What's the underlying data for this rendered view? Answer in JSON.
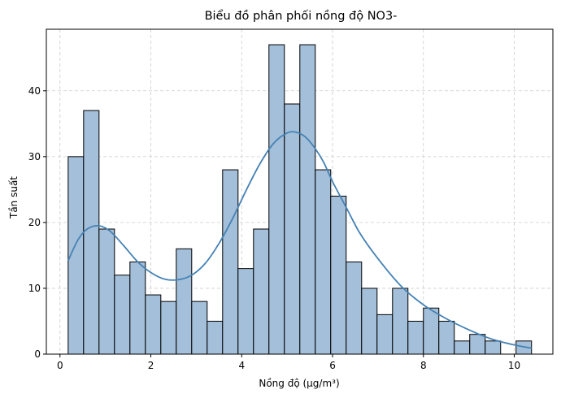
{
  "chart_data": {
    "type": "bar",
    "subtype": "histogram",
    "title": "Biểu đồ phân phối nồng độ NO3-",
    "xlabel": "Nồng độ (µg/m³)",
    "ylabel": "Tần suất",
    "xlim": [
      -0.3,
      10.85
    ],
    "ylim": [
      0,
      49.35
    ],
    "x_ticks": [
      0,
      2,
      4,
      6,
      8,
      10
    ],
    "y_ticks": [
      0,
      10,
      20,
      30,
      40
    ],
    "grid": true,
    "bar_color": "#a3bfd9",
    "edge_color": "#000000",
    "kde_color": "#4682b4",
    "bins": [
      {
        "x0": 0.18,
        "x1": 0.52,
        "count": 30
      },
      {
        "x0": 0.52,
        "x1": 0.86,
        "count": 37
      },
      {
        "x0": 0.86,
        "x1": 1.2,
        "count": 19
      },
      {
        "x0": 1.2,
        "x1": 1.54,
        "count": 12
      },
      {
        "x0": 1.54,
        "x1": 1.88,
        "count": 14
      },
      {
        "x0": 1.88,
        "x1": 2.22,
        "count": 9
      },
      {
        "x0": 2.22,
        "x1": 2.56,
        "count": 8
      },
      {
        "x0": 2.56,
        "x1": 2.9,
        "count": 16
      },
      {
        "x0": 2.9,
        "x1": 3.24,
        "count": 8
      },
      {
        "x0": 3.24,
        "x1": 3.58,
        "count": 5
      },
      {
        "x0": 3.58,
        "x1": 3.92,
        "count": 28
      },
      {
        "x0": 3.92,
        "x1": 4.26,
        "count": 13
      },
      {
        "x0": 4.26,
        "x1": 4.6,
        "count": 19
      },
      {
        "x0": 4.6,
        "x1": 4.94,
        "count": 47
      },
      {
        "x0": 4.94,
        "x1": 5.28,
        "count": 38
      },
      {
        "x0": 5.28,
        "x1": 5.62,
        "count": 47
      },
      {
        "x0": 5.62,
        "x1": 5.96,
        "count": 28
      },
      {
        "x0": 5.96,
        "x1": 6.3,
        "count": 24
      },
      {
        "x0": 6.3,
        "x1": 6.64,
        "count": 14
      },
      {
        "x0": 6.64,
        "x1": 6.98,
        "count": 10
      },
      {
        "x0": 6.98,
        "x1": 7.32,
        "count": 6
      },
      {
        "x0": 7.32,
        "x1": 7.66,
        "count": 10
      },
      {
        "x0": 7.66,
        "x1": 8.0,
        "count": 5
      },
      {
        "x0": 8.0,
        "x1": 8.34,
        "count": 7
      },
      {
        "x0": 8.34,
        "x1": 8.68,
        "count": 5
      },
      {
        "x0": 8.68,
        "x1": 9.02,
        "count": 2
      },
      {
        "x0": 9.02,
        "x1": 9.36,
        "count": 3
      },
      {
        "x0": 9.36,
        "x1": 9.7,
        "count": 2
      },
      {
        "x0": 9.7,
        "x1": 10.04,
        "count": 0
      },
      {
        "x0": 10.04,
        "x1": 10.38,
        "count": 2
      }
    ],
    "kde": {
      "x": [
        0.18,
        0.4,
        0.6,
        0.85,
        1.1,
        1.4,
        1.7,
        2.0,
        2.3,
        2.6,
        2.9,
        3.2,
        3.5,
        3.8,
        4.1,
        4.4,
        4.7,
        5.0,
        5.2,
        5.4,
        5.6,
        5.8,
        6.0,
        6.3,
        6.6,
        7.0,
        7.5,
        8.0,
        8.5,
        9.0,
        9.5,
        10.0,
        10.38
      ],
      "y": [
        14.2,
        17.4,
        19.0,
        19.5,
        18.7,
        16.5,
        14.1,
        12.4,
        11.4,
        11.3,
        12.0,
        13.8,
        16.8,
        20.6,
        24.9,
        28.9,
        32.0,
        33.6,
        33.7,
        33.0,
        31.4,
        29.2,
        26.2,
        22.3,
        18.4,
        14.5,
        10.4,
        7.5,
        5.4,
        3.7,
        2.3,
        1.4,
        0.9
      ]
    }
  }
}
